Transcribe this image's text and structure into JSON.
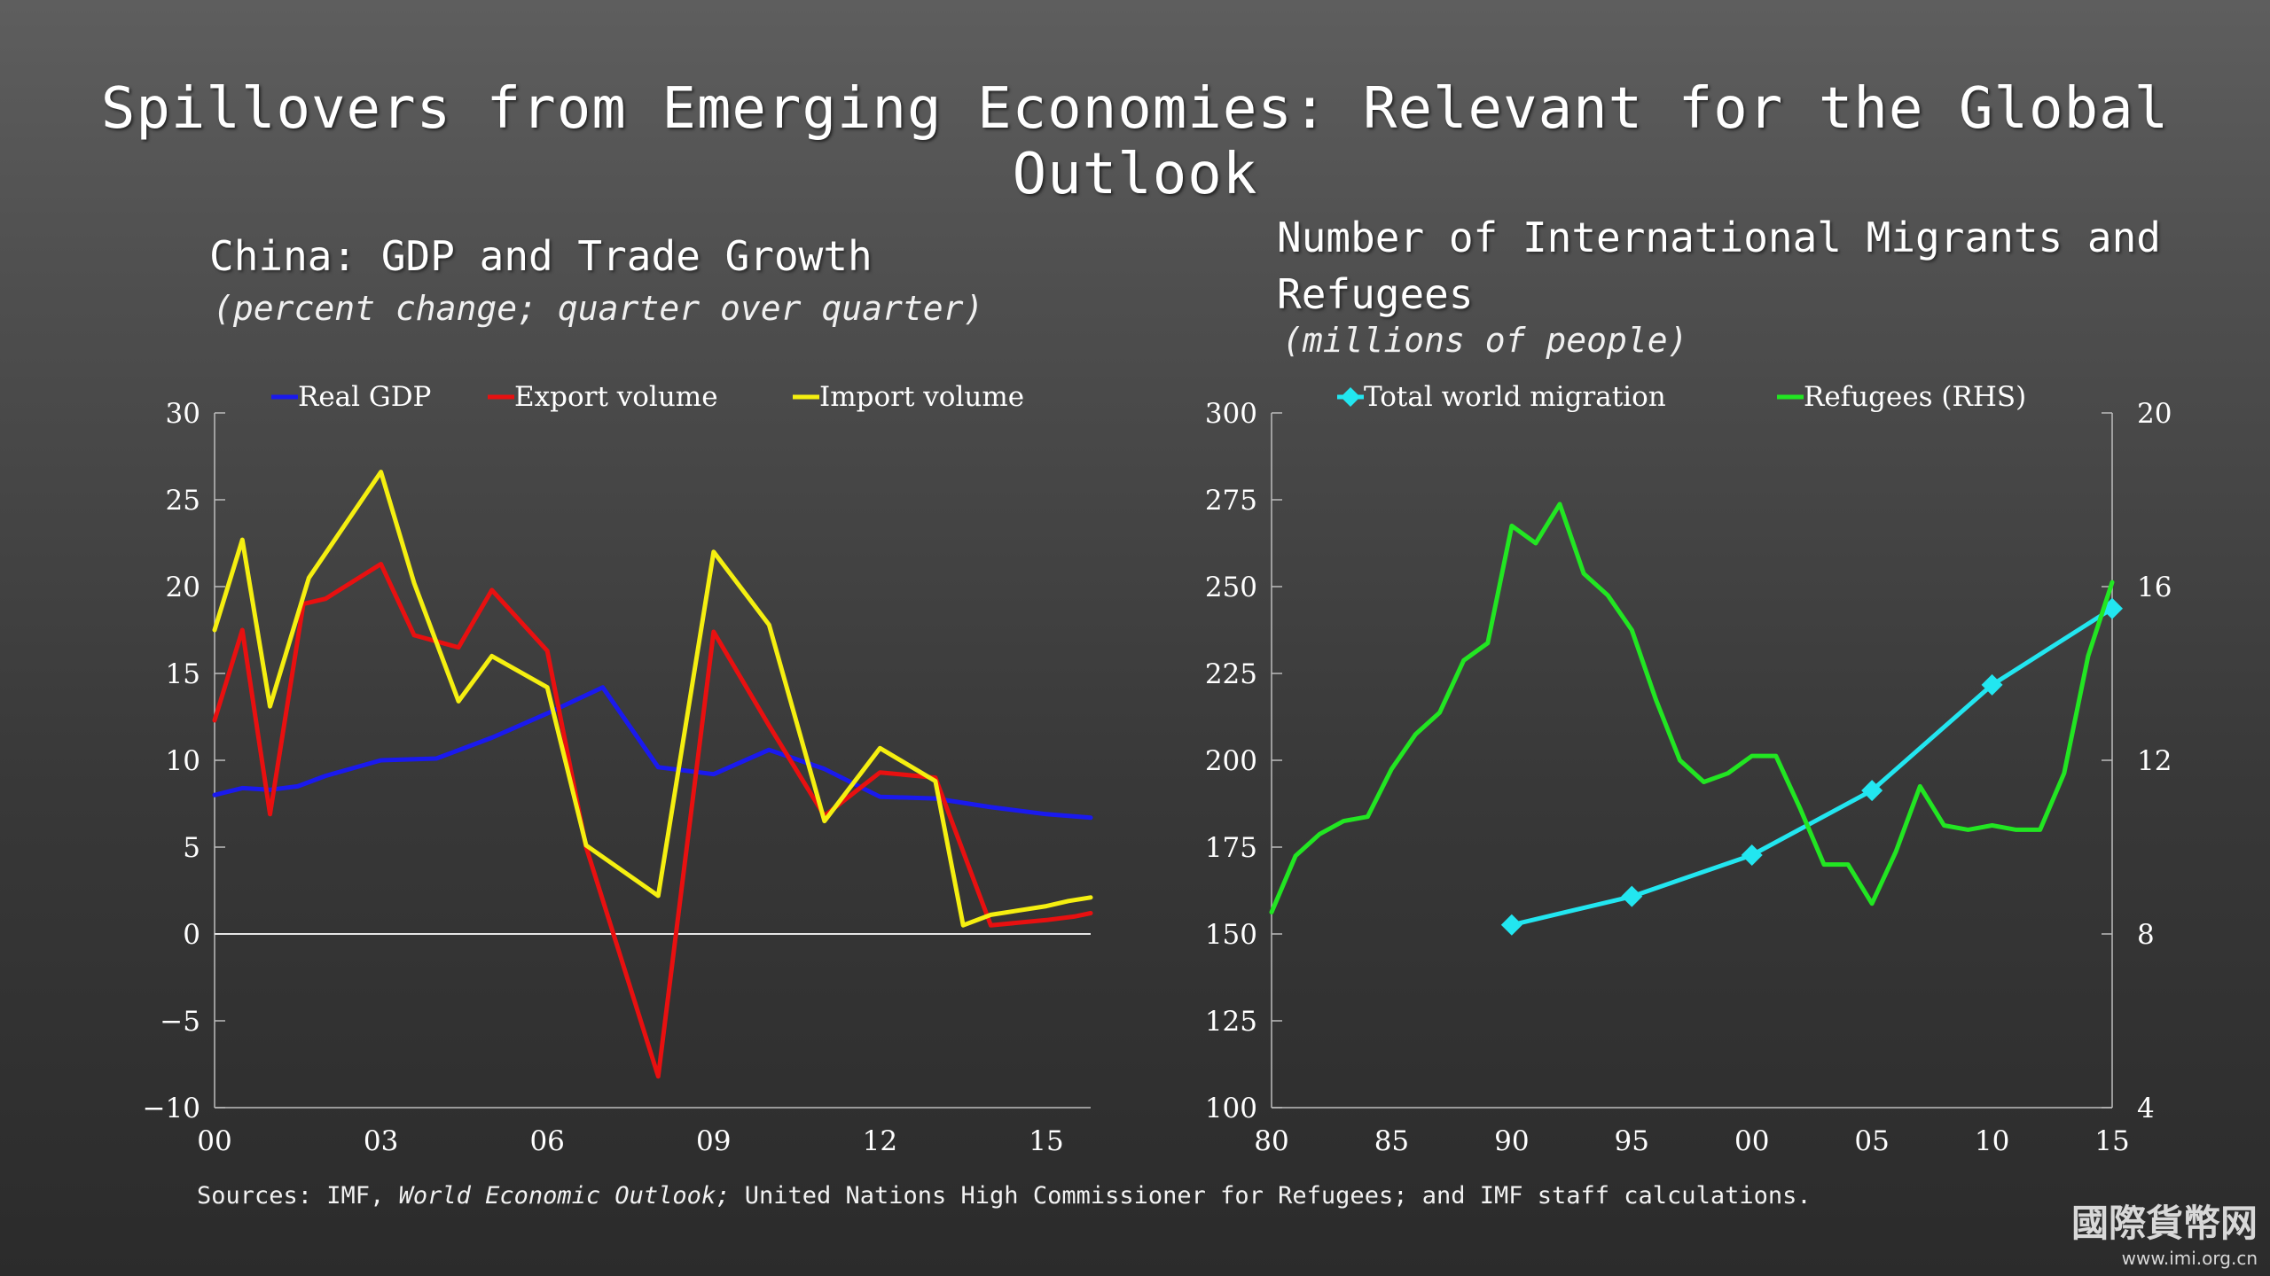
{
  "slide": {
    "title": "Spillovers from Emerging Economies: Relevant for the Global Outlook",
    "sources_prefix": "Sources:  IMF, ",
    "sources_italic": "World Economic Outlook;",
    "sources_suffix": " United Nations High Commissioner for Refugees; and IMF staff calculations.",
    "logo_text": "國際貨幣网",
    "logo_url": "www.imi.org.cn"
  },
  "chart_data": [
    {
      "type": "line",
      "title": "China: GDP and Trade Growth",
      "subtitle": "(percent change; quarter over quarter)",
      "x_range": [
        2000,
        2015.8
      ],
      "xticks": [
        2000,
        2003,
        2006,
        2009,
        2012,
        2015
      ],
      "xtick_labels": [
        "00",
        "03",
        "06",
        "09",
        "12",
        "15"
      ],
      "ylim": [
        -10,
        30
      ],
      "yticks": [
        -10,
        -5,
        0,
        5,
        10,
        15,
        20,
        25,
        30
      ],
      "ytick_labels": [
        "−10",
        "−5",
        "0",
        "5",
        "10",
        "15",
        "20",
        "25",
        "30"
      ],
      "legend_position": "top",
      "series": [
        {
          "name": "Real GDP",
          "color": "#1a1aee",
          "x": [
            2000,
            2000.5,
            2001,
            2001.5,
            2002,
            2003,
            2004,
            2005,
            2006,
            2007,
            2008,
            2009,
            2010,
            2011,
            2012,
            2013,
            2014,
            2015,
            2015.8
          ],
          "y": [
            8.0,
            8.4,
            8.3,
            8.5,
            9.1,
            10.0,
            10.1,
            11.3,
            12.7,
            14.2,
            9.6,
            9.2,
            10.6,
            9.5,
            7.9,
            7.8,
            7.3,
            6.9,
            6.7
          ]
        },
        {
          "name": "Export volume",
          "color": "#e81010",
          "x": [
            2000,
            2000.5,
            2001,
            2001.6,
            2002,
            2003,
            2003.6,
            2004.4,
            2005,
            2006,
            2006.7,
            2008,
            2009,
            2010,
            2011,
            2012,
            2013,
            2014,
            2015,
            2015.5,
            2015.8
          ],
          "y": [
            12.3,
            17.5,
            6.9,
            19.0,
            19.3,
            21.3,
            17.2,
            16.5,
            19.8,
            16.3,
            5.0,
            -8.2,
            17.4,
            12.0,
            6.8,
            9.3,
            9.0,
            0.5,
            0.8,
            1.0,
            1.2
          ]
        },
        {
          "name": "Import volume",
          "color": "#f5ef10",
          "x": [
            2000,
            2000.5,
            2001,
            2001.7,
            2003,
            2003.6,
            2004.4,
            2005,
            2006,
            2006.7,
            2008,
            2009,
            2010,
            2011,
            2012,
            2013,
            2013.5,
            2014,
            2015,
            2015.4,
            2015.8
          ],
          "y": [
            17.5,
            22.7,
            13.1,
            20.5,
            26.6,
            20.2,
            13.4,
            16.0,
            14.2,
            5.1,
            2.2,
            22.0,
            17.8,
            6.5,
            10.7,
            8.8,
            0.5,
            1.1,
            1.6,
            1.9,
            2.1
          ]
        }
      ]
    },
    {
      "type": "line",
      "title": "Number of International Migrants and Refugees",
      "subtitle": "(millions of people)",
      "x_range": [
        1980,
        2015
      ],
      "xticks": [
        1980,
        1985,
        1990,
        1995,
        2000,
        2005,
        2010,
        2015
      ],
      "xtick_labels": [
        "80",
        "85",
        "90",
        "95",
        "00",
        "05",
        "10",
        "15"
      ],
      "ylim": [
        100,
        300
      ],
      "yticks": [
        100,
        125,
        150,
        175,
        200,
        225,
        250,
        275,
        300
      ],
      "ytick_labels": [
        "100",
        "125",
        "150",
        "175",
        "200",
        "225",
        "250",
        "275",
        "300"
      ],
      "ylim_right": [
        4,
        20
      ],
      "yticks_right": [
        4,
        8,
        12,
        16,
        20
      ],
      "ytick_labels_right": [
        "4",
        "8",
        "12",
        "16",
        "20"
      ],
      "legend_position": "top",
      "series": [
        {
          "name": "Total world migration",
          "color": "#22e6f0",
          "axis": "left",
          "markers": true,
          "x": [
            1990,
            1995,
            2000,
            2005,
            2010,
            2015
          ],
          "y": [
            152.6,
            160.8,
            172.7,
            191.3,
            221.7,
            243.7
          ]
        },
        {
          "name": "Refugees (RHS)",
          "color": "#22e622",
          "axis": "right",
          "markers": false,
          "x": [
            1980,
            1981,
            1982,
            1983,
            1984,
            1985,
            1986,
            1987,
            1988,
            1989,
            1990,
            1991,
            1992,
            1993,
            1994,
            1995,
            1996,
            1997,
            1998,
            1999,
            2000,
            2001,
            2002,
            2003,
            2004,
            2005,
            2006,
            2007,
            2008,
            2009,
            2010,
            2011,
            2012,
            2013,
            2014,
            2015
          ],
          "y": [
            8.5,
            9.8,
            10.3,
            10.6,
            10.7,
            11.8,
            12.6,
            13.1,
            14.3,
            14.7,
            17.4,
            17.0,
            17.9,
            16.3,
            15.8,
            15.0,
            13.4,
            12.0,
            11.5,
            11.7,
            12.1,
            12.1,
            10.9,
            9.6,
            9.6,
            8.7,
            9.9,
            11.4,
            10.5,
            10.4,
            10.5,
            10.4,
            10.4,
            11.7,
            14.4,
            16.1
          ]
        }
      ]
    }
  ]
}
